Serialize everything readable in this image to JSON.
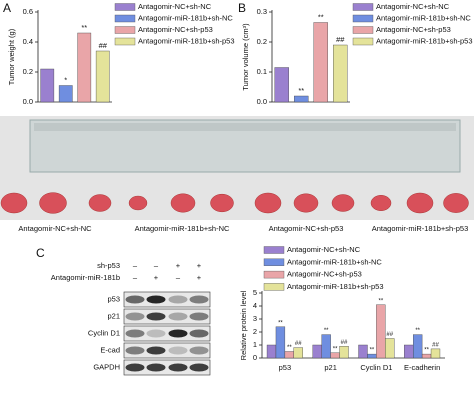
{
  "panels": [
    "A",
    "B",
    "C"
  ],
  "chart_data": [
    {
      "type": "bar",
      "y_label": "Tumor weight (g)",
      "categories": [
        "Antagomir-NC+sh-NC",
        "Antagomir-miR-181b+sh-NC",
        "Antagomir-NC+sh-p53",
        "Antagomir-miR-181b+sh-p53"
      ],
      "values": [
        0.22,
        0.11,
        0.46,
        0.34
      ],
      "colors": [
        "#9a80cf",
        "#6f8ee0",
        "#e9a5a8",
        "#e4e39a"
      ],
      "annotations": [
        null,
        "*",
        "**",
        "##"
      ],
      "ylim": [
        0,
        0.6
      ],
      "yticks": [
        {
          "value": 0,
          "label": "0.0"
        },
        0.2,
        0.4,
        0.6
      ]
    },
    {
      "type": "bar",
      "y_label": "Tumor volume (cm³)",
      "categories": [
        "Antagomir-NC+sh-NC",
        "Antagomir-miR-181b+sh-NC",
        "Antagomir-NC+sh-p53",
        "Antagomir-miR-181b+sh-p53"
      ],
      "values": [
        0.115,
        0.02,
        0.265,
        0.19
      ],
      "colors": [
        "#9a80cf",
        "#6f8ee0",
        "#e9a5a8",
        "#e4e39a"
      ],
      "annotations": [
        null,
        "**",
        "**",
        "##"
      ],
      "ylim": [
        0,
        0.3
      ],
      "yticks": [
        {
          "value": 0,
          "label": "0.0"
        },
        0.1,
        0.2,
        0.3
      ]
    },
    {
      "type": "grouped_bar",
      "y_label": "Relative protein level",
      "categories": [
        "p53",
        "p21",
        "Cyclin D1",
        "E-cadherin"
      ],
      "series": [
        {
          "name": "Antagomir-NC+sh-NC",
          "color": "#9a80cf",
          "values": [
            1,
            1,
            1,
            1
          ]
        },
        {
          "name": "Antagomir-miR-181b+sh-NC",
          "color": "#6f8ee0",
          "values": [
            2.4,
            1.8,
            0.3,
            1.8
          ],
          "annotations": [
            "**",
            "**",
            "**",
            "**"
          ]
        },
        {
          "name": "Antagomir-NC+sh-p53",
          "color": "#e9a5a8",
          "values": [
            0.5,
            0.4,
            4.1,
            0.3
          ],
          "annotations": [
            "**",
            "**",
            "**",
            "**"
          ]
        },
        {
          "name": "Antagomir-miR-181b+sh-p53",
          "color": "#e4e39a",
          "values": [
            0.8,
            0.9,
            1.5,
            0.7
          ],
          "annotations": [
            "##",
            "##",
            "##",
            "##"
          ]
        }
      ],
      "ylim": [
        0,
        5
      ],
      "yticks": [
        0,
        1,
        2,
        3,
        4,
        5
      ]
    }
  ],
  "photo": {
    "labels": [
      "Antagomir-NC+sh-NC",
      "Antagomir-miR-181b+sh-NC",
      "Antagomir-NC+sh-p53",
      "Antagomir-miR-181b+sh-p53"
    ]
  },
  "blot": {
    "conditions": [
      {
        "name": "sh-p53",
        "signs": [
          "–",
          "–",
          "+",
          "+"
        ]
      },
      {
        "name": "Antagomir-miR-181b",
        "signs": [
          "–",
          "+",
          "–",
          "+"
        ]
      }
    ],
    "bands": [
      "p53",
      "p21",
      "Cyclin D1",
      "E-cad",
      "GAPDH"
    ]
  }
}
